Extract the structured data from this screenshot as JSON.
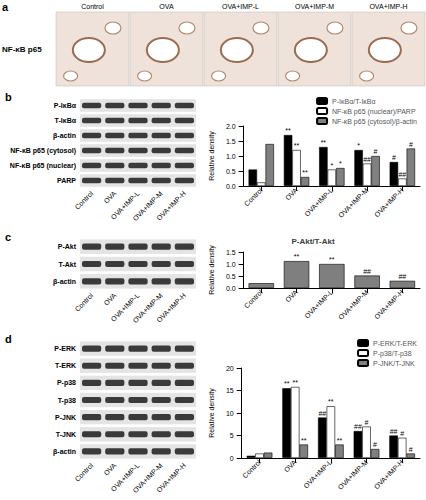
{
  "panels": {
    "a": {
      "letter": "a",
      "row_label": "NF-κB p65",
      "groups": [
        "Control",
        "OVA",
        "OVA+IMP-L",
        "OVA+IMP-M",
        "OVA+IMP-H"
      ]
    },
    "b": {
      "letter": "b",
      "blot_rows": [
        "P-IκBα",
        "T-IκBα",
        "β-actin",
        "NF-κB p65 (cytosol)",
        "NF-κB p65 (nuclear)",
        "PARP"
      ],
      "lanes": [
        "Control",
        "OVA",
        "OVA+IMP-L",
        "OVA+IMP-M",
        "OVA+IMP-H"
      ]
    },
    "c": {
      "letter": "c",
      "blot_rows": [
        "P-Akt",
        "T-Akt",
        "β-actin"
      ],
      "lanes": [
        "Control",
        "OVA",
        "OVA+IMP-L",
        "OVA+IMP-M",
        "OVA+IMP-H"
      ]
    },
    "d": {
      "letter": "d",
      "blot_rows": [
        "P-ERK",
        "T-ERK",
        "P-p38",
        "T-p38",
        "P-JNK",
        "T-JNK",
        "β-actin"
      ],
      "lanes": [
        "Control",
        "OVA",
        "OVA+IMP-L",
        "OVA+IMP-M",
        "OVA+IMP-H"
      ]
    }
  },
  "chart_data": [
    {
      "type": "bar",
      "y_label": "Relative density",
      "categories": [
        "Control",
        "OVA",
        "OVA+IMP-L",
        "OVA+IMP-M",
        "OVA+IMP-H"
      ],
      "series": [
        {
          "name": "P-IκBα/T-IκBα",
          "color": "#000000",
          "values": [
            0.55,
            1.7,
            1.3,
            1.2,
            0.8
          ],
          "annotations": [
            null,
            "**",
            "**",
            "*",
            "#"
          ]
        },
        {
          "name": "NF-κB p65 (nuclear)/PARP",
          "color": "#ffffff",
          "values": [
            0.12,
            1.2,
            0.55,
            0.75,
            0.25
          ],
          "annotations": [
            null,
            "**",
            "*",
            "##",
            "##"
          ]
        },
        {
          "name": "NF-κB p65 (cytosol)/β-actin",
          "color": "#808080",
          "values": [
            1.4,
            0.3,
            0.6,
            1.0,
            1.25
          ],
          "annotations": [
            null,
            "**",
            "*",
            "#",
            "#"
          ]
        }
      ],
      "ylim": [
        0,
        2
      ],
      "yticks": [
        {
          "value": 0,
          "label": "0.0"
        },
        {
          "value": 0.5,
          "label": "0.5"
        },
        {
          "value": 1,
          "label": "1.0"
        },
        {
          "value": 1.5,
          "label": "1.5"
        },
        {
          "value": 2,
          "label": "2.0"
        }
      ],
      "grid": false,
      "legend": "top-right"
    },
    {
      "type": "bar",
      "title": "P-Akt/T-Akt",
      "y_label": "Relative density",
      "categories": [
        "Control",
        "OVA",
        "OVA+IMP-L",
        "OVA+IMP-M",
        "OVA+IMP-H"
      ],
      "color": "#7f7f7f",
      "series": [
        {
          "color": "#7f7f7f",
          "values": [
            0.2,
            1.12,
            1.0,
            0.52,
            0.3
          ],
          "annotations": [
            null,
            "**",
            "**",
            "##",
            "##"
          ]
        }
      ],
      "ylim": [
        0,
        1.5
      ],
      "yticks": [
        {
          "value": 0,
          "label": "0.0"
        },
        {
          "value": 0.5,
          "label": "0.5"
        },
        {
          "value": 1,
          "label": "1.0"
        },
        {
          "value": 1.5,
          "label": "1.5"
        }
      ],
      "grid": false
    },
    {
      "type": "bar",
      "y_label": "Relative density",
      "categories": [
        "Control",
        "OVA",
        "OVA+IMP-L",
        "OVA+IMP-M",
        "OVA+IMP-H"
      ],
      "series": [
        {
          "name": "P-ERK/T-ERK",
          "color": "#000000",
          "values": [
            0.5,
            15.5,
            9.0,
            6.0,
            5.0
          ],
          "annotations": [
            null,
            "**",
            "##",
            "##",
            "##"
          ]
        },
        {
          "name": "P-p38/T-p38",
          "color": "#ffffff",
          "values": [
            1.0,
            15.8,
            11.5,
            7.0,
            4.5
          ],
          "annotations": [
            null,
            "**",
            "**",
            "#",
            "#"
          ]
        },
        {
          "name": "P-JNK/T-JNK",
          "color": "#808080",
          "values": [
            1.2,
            3.0,
            3.0,
            2.0,
            1.0
          ],
          "annotations": [
            null,
            "**",
            "**",
            "#",
            "#"
          ]
        }
      ],
      "ylim": [
        0,
        20
      ],
      "yticks": [
        0,
        5,
        10,
        15,
        20
      ],
      "grid": false,
      "legend": "top-right"
    }
  ]
}
